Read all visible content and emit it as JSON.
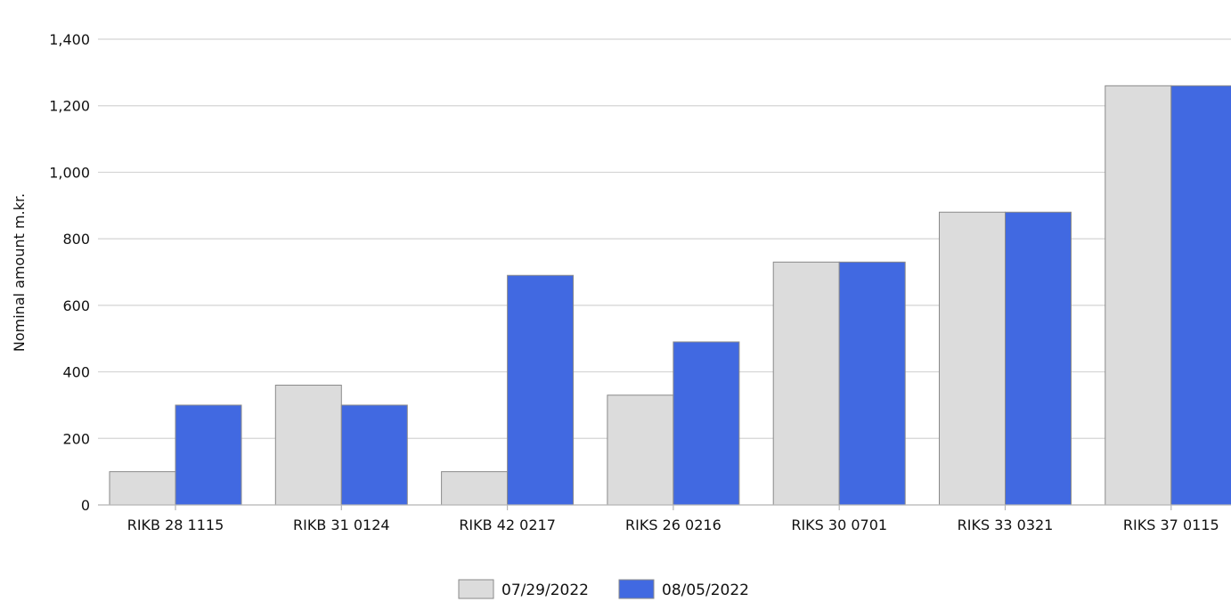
{
  "chart_data": {
    "type": "bar",
    "categories": [
      "RIKB 28 1115",
      "RIKB 31 0124",
      "RIKB 42 0217",
      "RIKS 26 0216",
      "RIKS 30 0701",
      "RIKS 33 0321",
      "RIKS 37 0115"
    ],
    "series": [
      {
        "name": "07/29/2022",
        "color": "#dcdcdc",
        "values": [
          100,
          360,
          100,
          330,
          730,
          880,
          1260
        ]
      },
      {
        "name": "08/05/2022",
        "color": "#4169e1",
        "values": [
          300,
          300,
          690,
          490,
          730,
          880,
          1260
        ]
      }
    ],
    "title": "",
    "xlabel": "",
    "ylabel": "Nominal amount m.kr.",
    "ylim": [
      0,
      1400
    ],
    "yticks": [
      0,
      200,
      400,
      600,
      800,
      1000,
      1200,
      1400
    ],
    "ytick_labels": [
      "0",
      "200",
      "400",
      "600",
      "800",
      "1,000",
      "1,200",
      "1,400"
    ],
    "grid": true,
    "legend_position": "bottom-center"
  }
}
